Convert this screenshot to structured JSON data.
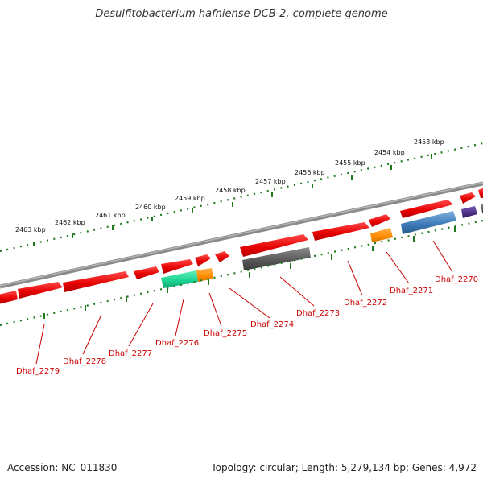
{
  "title": "Desulfitobacterium hafniense DCB-2, complete genome",
  "footer": {
    "accession": "Accession: NC_011830",
    "topology": "Topology: circular; Length: 5,279,134 bp; Genes: 4,972"
  },
  "colors": {
    "backbone": "#8a8a8a",
    "tick": "#1f7a1f",
    "label": "#cc0000",
    "gene_red": "#e60000",
    "gene_gray": "#555555",
    "gene_cyan": "#19d191",
    "gene_orange": "#ff8c00",
    "gene_blue": "#3a78b5",
    "gene_purple": "#4b2e83"
  },
  "coordinate_labels": [
    "2463 kbp",
    "2462 kbp",
    "2461 kbp",
    "2460 kbp",
    "2459 kbp",
    "2458 kbp",
    "2457 kbp",
    "2456 kbp",
    "2455 kbp",
    "2454 kbp",
    "2453 kbp"
  ],
  "gene_labels": [
    "Dhaf_2279",
    "Dhaf_2278",
    "Dhaf_2277",
    "Dhaf_2276",
    "Dhaf_2275",
    "Dhaf_2274",
    "Dhaf_2273",
    "Dhaf_2272",
    "Dhaf_2271",
    "Dhaf_2270"
  ]
}
